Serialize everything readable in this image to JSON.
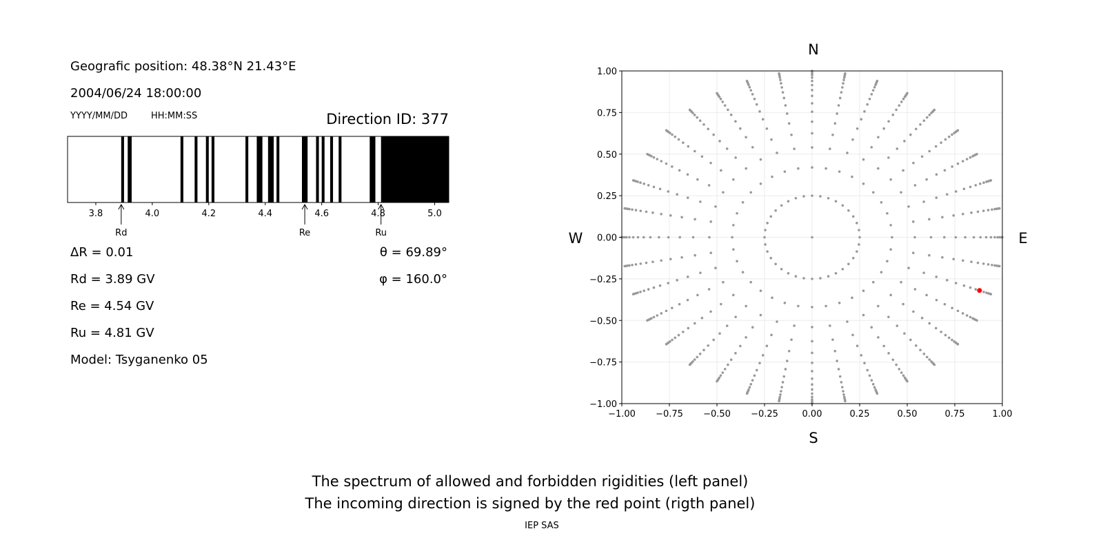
{
  "info": {
    "position": "Geografic position: 48.38°N 21.43°E",
    "datetime": "2004/06/24 18:00:00",
    "date_format": "YYYY/MM/DD",
    "time_format": "HH:MM:SS",
    "direction_id": "Direction ID: 377",
    "delta_r": "ΔR = 0.01",
    "rd": "Rd = 3.89 GV",
    "re": "Re = 4.54 GV",
    "ru": "Ru = 4.81 GV",
    "model": "Model: Tsyganenko 05",
    "theta": "θ = 69.89°",
    "phi": "φ = 160.0°"
  },
  "footer": {
    "line1": "The spectrum of allowed and forbidden rigidities (left panel)",
    "line2": "The incoming direction is signed by the red point (rigth panel)",
    "credit": "IEP SAS"
  },
  "chart_data": [
    {
      "type": "bar",
      "xlim": [
        3.7,
        5.05
      ],
      "xticks": [
        "3.8",
        "4.0",
        "4.2",
        "4.4",
        "4.6",
        "4.8",
        "5.0"
      ],
      "forbidden_bands": [
        [
          3.89,
          3.9
        ],
        [
          3.913,
          3.927
        ],
        [
          4.1,
          4.11
        ],
        [
          4.15,
          4.16
        ],
        [
          4.19,
          4.2
        ],
        [
          4.21,
          4.22
        ],
        [
          4.33,
          4.34
        ],
        [
          4.37,
          4.39
        ],
        [
          4.41,
          4.43
        ],
        [
          4.44,
          4.45
        ],
        [
          4.53,
          4.55
        ],
        [
          4.58,
          4.59
        ],
        [
          4.6,
          4.61
        ],
        [
          4.63,
          4.64
        ],
        [
          4.66,
          4.67
        ],
        [
          4.77,
          4.79
        ],
        [
          4.81,
          5.05
        ]
      ],
      "markers": [
        {
          "label": "Rd",
          "value": 3.89
        },
        {
          "label": "Re",
          "value": 4.54
        },
        {
          "label": "Ru",
          "value": 4.81
        }
      ],
      "colors": {
        "forbidden": "#000000",
        "allowed": "#ffffff"
      }
    },
    {
      "type": "scatter",
      "xlim": [
        -1,
        1
      ],
      "ylim": [
        -1,
        1
      ],
      "xticks": [
        "−1.00",
        "−0.75",
        "−0.50",
        "−0.25",
        "0.00",
        "0.25",
        "0.50",
        "0.75",
        "1.00"
      ],
      "yticks": [
        "−1.00",
        "−0.75",
        "−0.50",
        "−0.25",
        "0.00",
        "0.25",
        "0.50",
        "0.75",
        "1.00"
      ],
      "grid": true,
      "compass": {
        "top": "N",
        "bottom": "S",
        "left": "W",
        "right": "E"
      },
      "azimuth_step_deg": 10,
      "radii": [
        0.25,
        0.42,
        0.54,
        0.625,
        0.695,
        0.755,
        0.805,
        0.85,
        0.885,
        0.915,
        0.94,
        0.96,
        0.975,
        0.985,
        0.993,
        1.0
      ],
      "highlight": {
        "x": 0.88,
        "y": -0.32,
        "color": "#ff0000"
      },
      "point_color": "#999999"
    }
  ]
}
